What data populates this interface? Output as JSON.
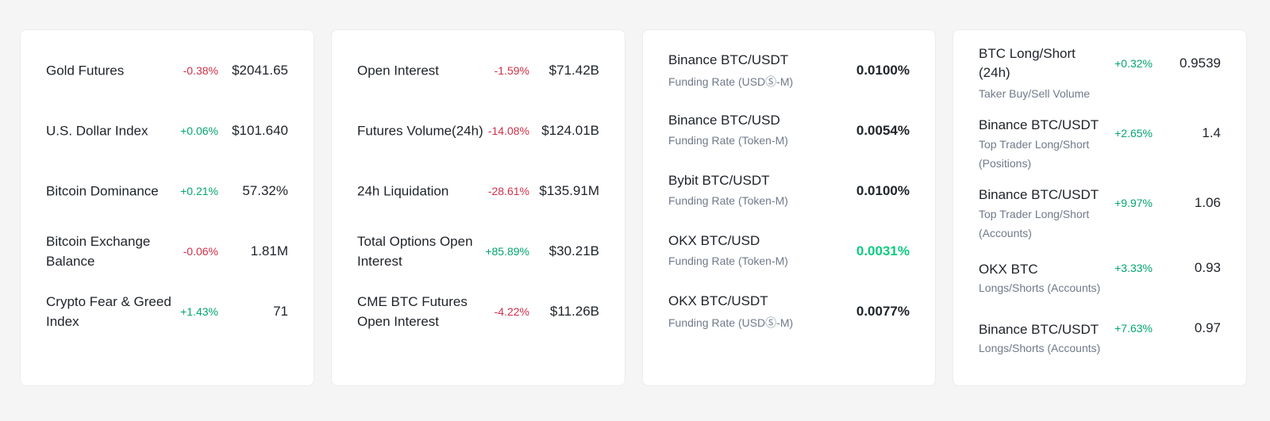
{
  "colors": {
    "positive": "#03a66d",
    "negative": "#cf304a",
    "highlight_positive": "#0ecb81",
    "text_primary": "#1e2329",
    "text_secondary": "#707a8a",
    "card_bg": "#ffffff",
    "page_bg": "#f5f5f5"
  },
  "market_card": {
    "rows": [
      {
        "name": "Gold Futures",
        "change": "-0.38%",
        "value": "$2041.65"
      },
      {
        "name": "U.S. Dollar Index",
        "change": "+0.06%",
        "value": "$101.640"
      },
      {
        "name": "Bitcoin Dominance",
        "change": "+0.21%",
        "value": "57.32%"
      },
      {
        "name": "Bitcoin Exchange Balance",
        "change": "-0.06%",
        "value": "1.81M"
      },
      {
        "name": "Crypto Fear & Greed Index",
        "change": "+1.43%",
        "value": "71"
      }
    ]
  },
  "derivatives_card": {
    "rows": [
      {
        "name": "Open Interest",
        "change": "-1.59%",
        "value": "$71.42B"
      },
      {
        "name": "Futures Volume(24h)",
        "change": "-14.08%",
        "value": "$124.01B"
      },
      {
        "name": "24h Liquidation",
        "change": "-28.61%",
        "value": "$135.91M"
      },
      {
        "name": "Total Options Open Interest",
        "change": "+85.89%",
        "value": "$30.21B"
      },
      {
        "name": "CME BTC Futures Open Interest",
        "change": "-4.22%",
        "value": "$11.26B"
      }
    ]
  },
  "funding_card": {
    "rows": [
      {
        "name": "Binance BTC/USDT",
        "sub": "Funding Rate (USDⓈ-M)",
        "value": "0.0100%"
      },
      {
        "name": "Binance BTC/USD",
        "sub": "Funding Rate (Token-M)",
        "value": "0.0054%"
      },
      {
        "name": "Bybit BTC/USDT",
        "sub": "Funding Rate (Token-M)",
        "value": "0.0100%"
      },
      {
        "name": "OKX BTC/USD",
        "sub": "Funding Rate (Token-M)",
        "value": "0.0031%"
      },
      {
        "name": "OKX BTC/USDT",
        "sub": "Funding Rate (USDⓈ-M)",
        "value": "0.0077%"
      }
    ]
  },
  "ratio_card": {
    "rows": [
      {
        "name": "BTC Long/Short (24h)",
        "sub": "Taker Buy/Sell Volume",
        "change": "+0.32%",
        "value": "0.9539"
      },
      {
        "name": "Binance BTC/USDT",
        "sub": "Top Trader Long/Short (Positions)",
        "change": "+2.65%",
        "value": "1.4"
      },
      {
        "name": "Binance BTC/USDT",
        "sub": "Top Trader Long/Short (Accounts)",
        "change": "+9.97%",
        "value": "1.06"
      },
      {
        "name": "OKX BTC",
        "sub": "Longs/Shorts (Accounts)",
        "change": "+3.33%",
        "value": "0.93"
      },
      {
        "name": "Binance BTC/USDT",
        "sub": "Longs/Shorts (Accounts)",
        "change": "+7.63%",
        "value": "0.97"
      }
    ]
  }
}
